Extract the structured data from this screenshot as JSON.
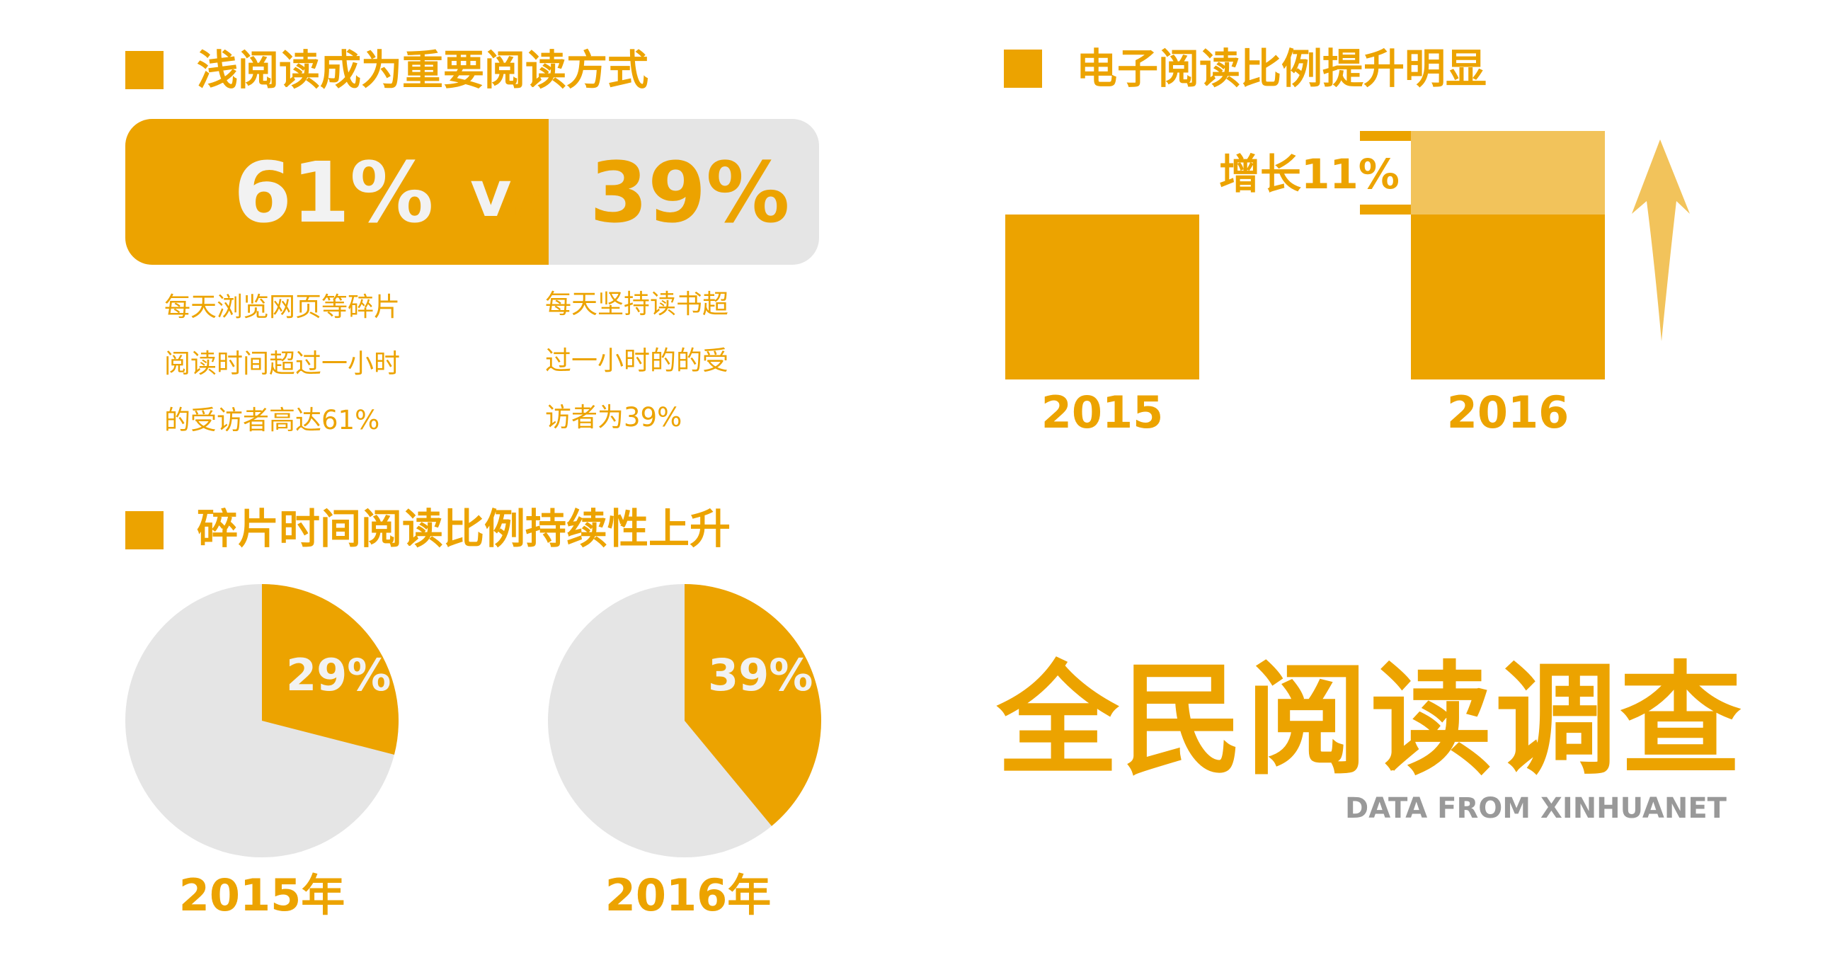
{
  "colors": {
    "accent": "#ECA300",
    "accent_light": "#F2C35B",
    "gray": "#E5E5E5",
    "text_gray": "#999999"
  },
  "section1": {
    "title": "浅阅读成为重要阅读方式",
    "left_value": "61%",
    "vs": "vs",
    "right_value": "39%",
    "left_desc": [
      "每天浏览网页等碎片",
      "阅读时间超过一小时",
      "的受访者高达61%"
    ],
    "right_desc": [
      "每天坚持读书超",
      "过一小时的的受",
      "访者为39%"
    ]
  },
  "section2": {
    "title": "电子阅读比例提升明显",
    "increase_label": "增长11%",
    "years": [
      "2015",
      "2016"
    ]
  },
  "section3": {
    "title": "碎片时间阅读比例持续性上升",
    "pies": [
      {
        "year_label": "2015年",
        "value_label": "29%"
      },
      {
        "year_label": "2016年",
        "value_label": "39%"
      }
    ]
  },
  "footer": {
    "main_title": "全民阅读调查",
    "subtitle": "DATA FROM XINHUANET"
  },
  "chart_data": [
    {
      "type": "bar",
      "title": "浅阅读成为重要阅读方式",
      "series": [
        {
          "name": "浅阅读",
          "values": [
            61
          ]
        },
        {
          "name": "读书",
          "values": [
            39
          ]
        }
      ]
    },
    {
      "type": "bar",
      "title": "电子阅读比例提升明显",
      "categories": [
        "2015",
        "2016"
      ],
      "annotation": "增长11%",
      "increase": 11
    },
    {
      "type": "pie",
      "title": "碎片时间阅读比例持续性上升",
      "pies": [
        {
          "category": "2015年",
          "value": 29
        },
        {
          "category": "2016年",
          "value": 39
        }
      ]
    }
  ]
}
